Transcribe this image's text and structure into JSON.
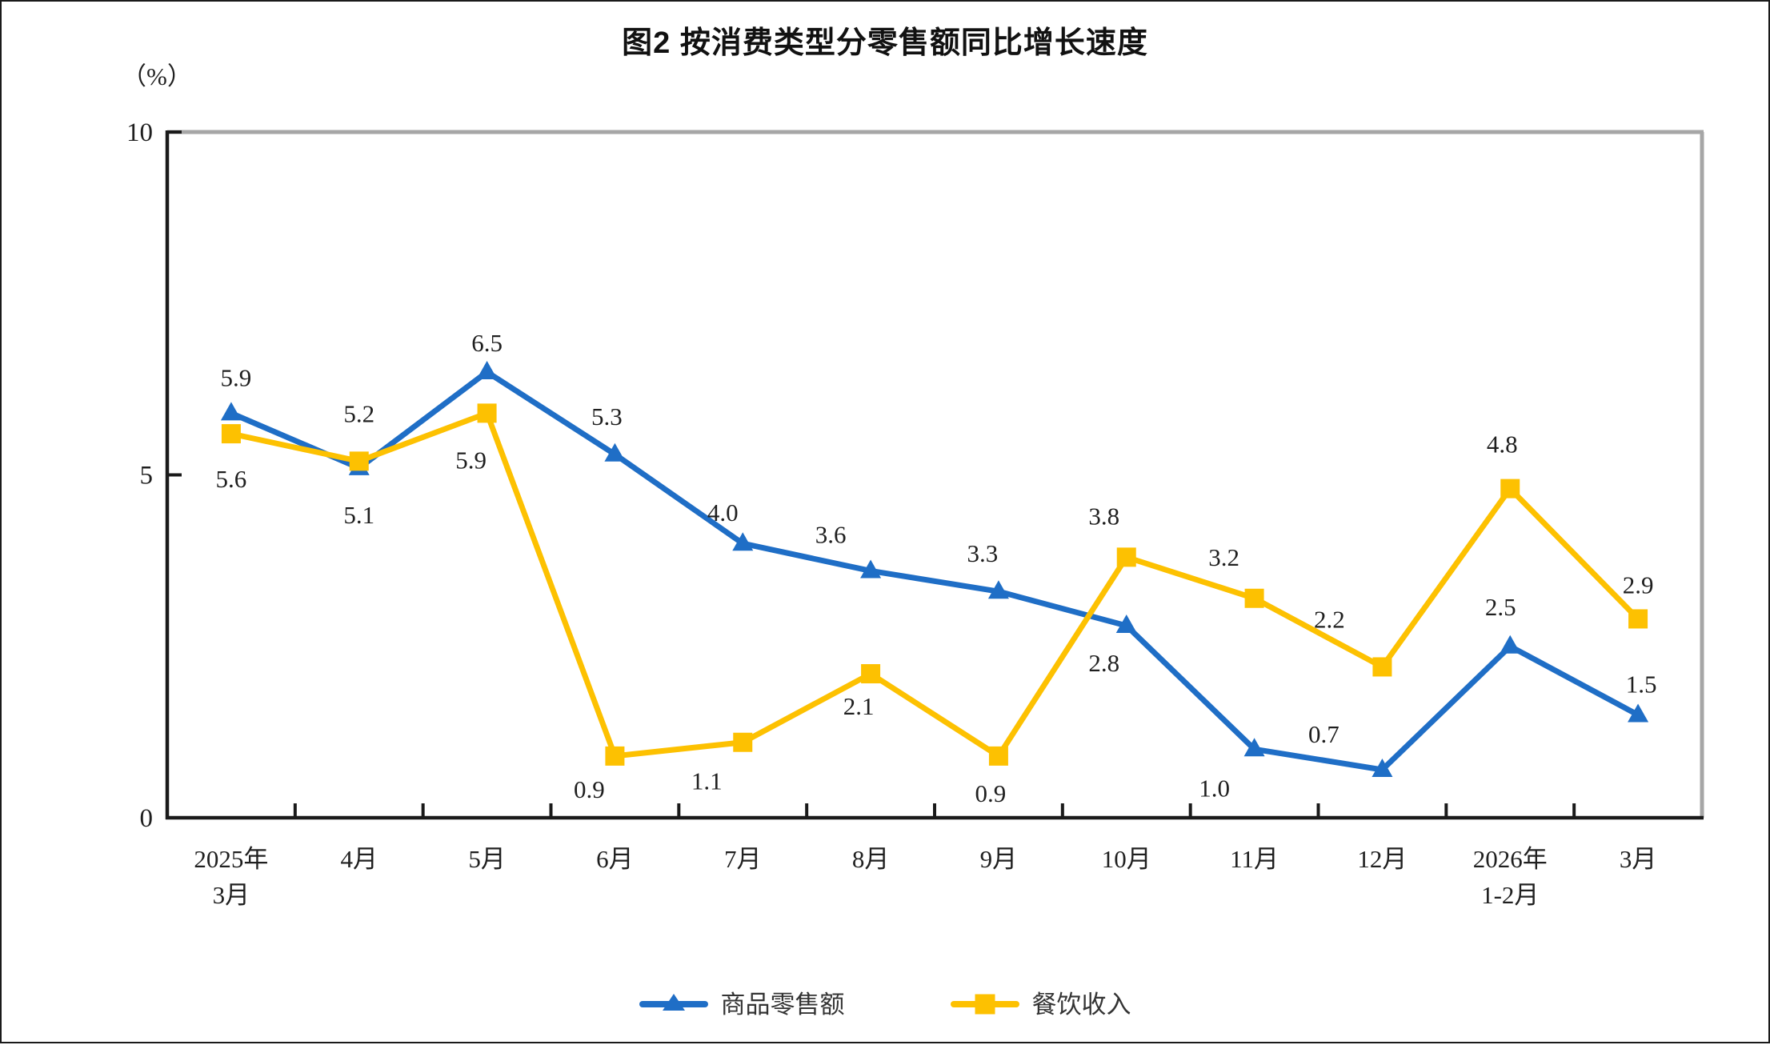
{
  "page": {
    "title": "图2 按消费类型分零售额同比增长速度",
    "unit_label": "（%）"
  },
  "chart_data": {
    "type": "line",
    "title": "图2 按消费类型分零售额同比增长速度",
    "ylabel": "（%）",
    "xlabel": "",
    "ylim": [
      0,
      10
    ],
    "yticks": [
      0,
      5,
      10
    ],
    "grid": false,
    "legend_position": "bottom",
    "categories": [
      "2025年\n3月",
      "4月",
      "5月",
      "6月",
      "7月",
      "8月",
      "9月",
      "10月",
      "11月",
      "12月",
      "2026年\n1-2月",
      "3月"
    ],
    "series": [
      {
        "name": "商品零售额",
        "color": "#1F6EC6",
        "marker": "triangle",
        "values": [
          5.9,
          5.1,
          6.5,
          5.3,
          4.0,
          3.6,
          3.3,
          2.8,
          1.0,
          0.7,
          2.5,
          1.5
        ],
        "label_offsets": [
          [
            6,
            -45
          ],
          [
            0,
            58
          ],
          [
            0,
            -37
          ],
          [
            -10,
            -48
          ],
          [
            -25,
            -39
          ],
          [
            -50,
            -46
          ],
          [
            -20,
            -48
          ],
          [
            -28,
            46
          ],
          [
            -50,
            48
          ],
          [
            -73,
            -45
          ],
          [
            -12,
            -50
          ],
          [
            4,
            -39
          ]
        ]
      },
      {
        "name": "餐饮收入",
        "color": "#FDC101",
        "marker": "square",
        "values": [
          5.6,
          5.2,
          5.9,
          0.9,
          1.1,
          2.1,
          0.9,
          3.8,
          3.2,
          2.2,
          4.8,
          2.9
        ],
        "label_offsets": [
          [
            0,
            56
          ],
          [
            0,
            -60
          ],
          [
            -20,
            58
          ],
          [
            -32,
            41
          ],
          [
            -45,
            48
          ],
          [
            -15,
            40
          ],
          [
            -10,
            46
          ],
          [
            -28,
            -52
          ],
          [
            -38,
            -52
          ],
          [
            -66,
            -60
          ],
          [
            -10,
            -56
          ],
          [
            0,
            -43
          ]
        ]
      }
    ],
    "axis_colors": {
      "left": "#1a1a1a",
      "bottom": "#1a1a1a",
      "top": "#A6A6A6",
      "right": "#A6A6A6"
    },
    "label_color": "#1f1f1f"
  }
}
